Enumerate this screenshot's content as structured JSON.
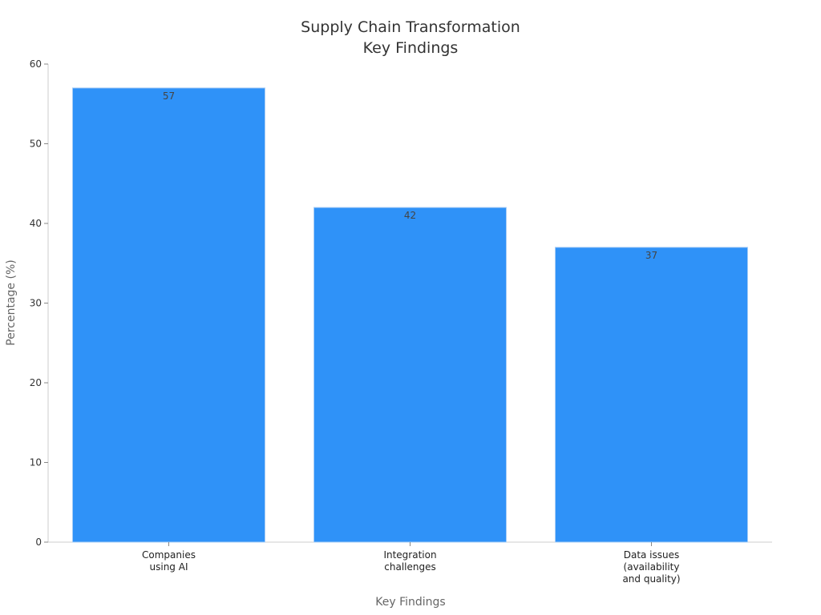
{
  "chart_data": {
    "type": "bar",
    "title": [
      "Supply Chain Transformation",
      "Key Findings"
    ],
    "xlabel": "Key Findings",
    "ylabel": "Percentage (%)",
    "categories": [
      [
        "Companies",
        "using AI"
      ],
      [
        "Integration",
        "challenges"
      ],
      [
        "Data issues",
        "(availability",
        "and quality)"
      ]
    ],
    "values": [
      57,
      42,
      37
    ],
    "data_labels": [
      "57",
      "42",
      "37"
    ],
    "ylim": [
      0,
      60
    ],
    "yticks": [
      0,
      10,
      20,
      30,
      40,
      50,
      60
    ],
    "grid": false,
    "bar_color": "#2f92f8",
    "bar_edge_color": "#a8cdf5"
  }
}
